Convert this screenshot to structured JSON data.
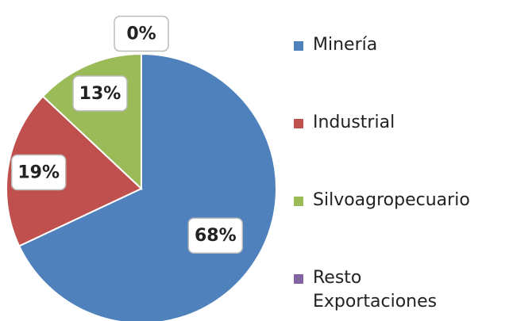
{
  "chart_data": {
    "type": "pie",
    "categories": [
      "Minería",
      "Industrial",
      "Silvoagropecuario",
      "Resto Exportaciones"
    ],
    "values": [
      68,
      19,
      13,
      0
    ],
    "value_labels": [
      "68%",
      "19%",
      "13%",
      "0%"
    ],
    "colors": [
      "#4f81bd",
      "#c0504d",
      "#9bbb59",
      "#8064a2"
    ],
    "legend": "right"
  }
}
